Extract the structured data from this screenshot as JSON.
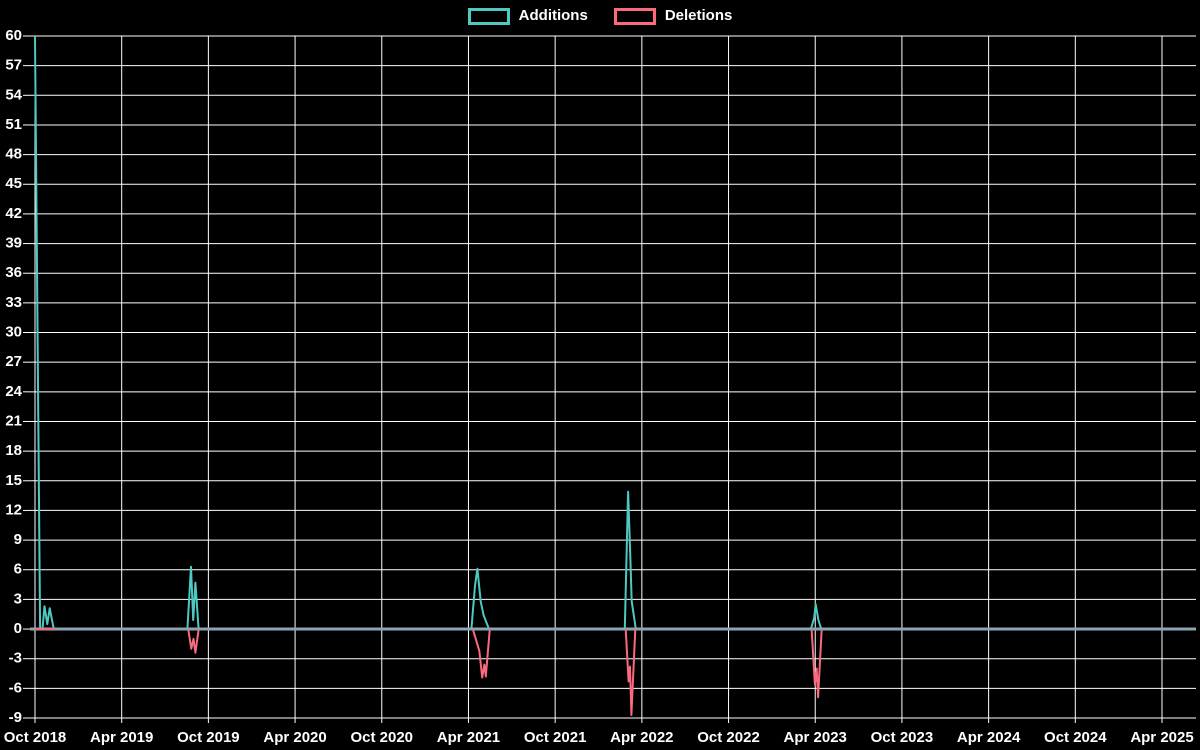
{
  "page": {
    "background": "#000000"
  },
  "legend": {
    "position": "top-center",
    "items": [
      {
        "label": "Additions",
        "color": "#4ec9c2"
      },
      {
        "label": "Deletions",
        "color": "#f96a7e"
      }
    ]
  },
  "chart_data": {
    "type": "line",
    "title": "",
    "xlabel": "",
    "ylabel": "",
    "x_unit": "months since Oct 2018",
    "ylim": [
      -9,
      60
    ],
    "y_tick_step": 3,
    "grid": true,
    "legend_position": "top-center",
    "colors": {
      "background": "#000000",
      "grid": "#ffffff",
      "zero_line": "#8ba4b2",
      "text": "#ffffff",
      "additions": "#4ec9c2",
      "deletions": "#f96a7e"
    },
    "y_ticks": [
      60,
      57,
      54,
      51,
      48,
      45,
      42,
      39,
      36,
      33,
      30,
      27,
      24,
      21,
      18,
      15,
      12,
      9,
      6,
      3,
      0,
      -3,
      -6,
      -9
    ],
    "x_ticks": [
      {
        "label": "Oct 2018",
        "month": 0
      },
      {
        "label": "Apr 2019",
        "month": 6
      },
      {
        "label": "Oct 2019",
        "month": 12
      },
      {
        "label": "Apr 2020",
        "month": 18
      },
      {
        "label": "Oct 2020",
        "month": 24
      },
      {
        "label": "Apr 2021",
        "month": 30
      },
      {
        "label": "Oct 2021",
        "month": 36
      },
      {
        "label": "Apr 2022",
        "month": 42
      },
      {
        "label": "Oct 2022",
        "month": 48
      },
      {
        "label": "Apr 2023",
        "month": 54
      },
      {
        "label": "Oct 2023",
        "month": 60
      },
      {
        "label": "Apr 2024",
        "month": 66
      },
      {
        "label": "Oct 2024",
        "month": 72
      },
      {
        "label": "Apr 2025",
        "month": 78
      }
    ],
    "series": [
      {
        "name": "Additions",
        "color": "#4ec9c2",
        "segments": [
          [
            [
              0,
              60
            ],
            [
              0.35,
              0
            ],
            [
              0.52,
              0
            ],
            [
              0.66,
              2.3
            ],
            [
              0.85,
              0.5
            ],
            [
              1.02,
              2.1
            ],
            [
              1.3,
              0
            ]
          ],
          [
            [
              10.55,
              0
            ],
            [
              10.8,
              6.3
            ],
            [
              10.95,
              0.9
            ],
            [
              11.1,
              4.7
            ],
            [
              11.32,
              0
            ]
          ],
          [
            [
              30.2,
              0
            ],
            [
              30.45,
              4.4
            ],
            [
              30.62,
              6.1
            ],
            [
              30.85,
              2.8
            ],
            [
              31.05,
              1.4
            ],
            [
              31.42,
              0
            ]
          ],
          [
            [
              40.82,
              0
            ],
            [
              41.05,
              13.9
            ],
            [
              41.18,
              8.3
            ],
            [
              41.3,
              2.8
            ],
            [
              41.58,
              0
            ]
          ],
          [
            [
              53.7,
              0
            ],
            [
              53.92,
              1.1
            ],
            [
              54.03,
              2.5
            ],
            [
              54.22,
              0.9
            ],
            [
              54.42,
              0
            ]
          ]
        ]
      },
      {
        "name": "Deletions",
        "color": "#f96a7e",
        "segments": [
          [
            [
              0,
              0
            ],
            [
              1.4,
              0
            ]
          ],
          [
            [
              10.6,
              0
            ],
            [
              10.82,
              -2.0
            ],
            [
              10.97,
              -1.0
            ],
            [
              11.1,
              -2.4
            ],
            [
              11.33,
              0
            ]
          ],
          [
            [
              30.3,
              0
            ],
            [
              30.75,
              -2.2
            ],
            [
              30.95,
              -4.9
            ],
            [
              31.1,
              -3.6
            ],
            [
              31.2,
              -4.8
            ],
            [
              31.48,
              0
            ]
          ],
          [
            [
              40.88,
              0
            ],
            [
              41.08,
              -5.3
            ],
            [
              41.18,
              -3.8
            ],
            [
              41.28,
              -8.7
            ],
            [
              41.55,
              0
            ]
          ],
          [
            [
              53.75,
              0
            ],
            [
              53.98,
              -5.6
            ],
            [
              54.1,
              -4.0
            ],
            [
              54.2,
              -6.9
            ],
            [
              54.45,
              0
            ]
          ]
        ]
      }
    ]
  }
}
